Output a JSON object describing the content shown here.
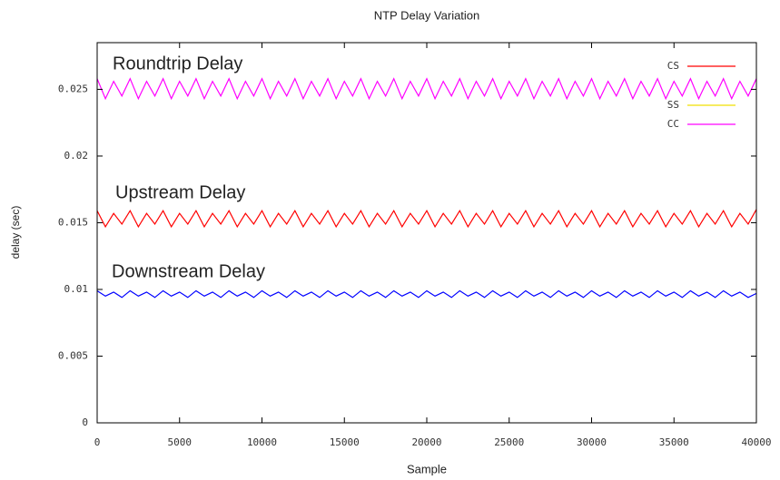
{
  "chart_data": {
    "type": "line",
    "title": "NTP Delay Variation",
    "x_label": "Sample",
    "y_label": "delay (sec)",
    "xlim": [
      0,
      40000
    ],
    "xticks": [
      0,
      5000,
      10000,
      15000,
      20000,
      25000,
      30000,
      35000,
      40000
    ],
    "ylim": [
      0,
      0.0285
    ],
    "yticks": [
      0,
      0.005,
      0.01,
      0.015,
      0.02,
      0.025
    ],
    "grid": false,
    "legend": "top-right",
    "annotations": [
      "Roundtrip Delay",
      "Upstream Delay",
      "Downstream Delay"
    ],
    "x": [
      0,
      500,
      1000,
      1500,
      2000,
      2500,
      3000,
      3500,
      4000,
      4500,
      5000,
      5500,
      6000,
      6500,
      7000,
      7500,
      8000,
      8500,
      9000,
      9500,
      10000,
      10500,
      11000,
      11500,
      12000,
      12500,
      13000,
      13500,
      14000,
      14500,
      15000,
      15500,
      16000,
      16500,
      17000,
      17500,
      18000,
      18500,
      19000,
      19500,
      20000,
      20500,
      21000,
      21500,
      22000,
      22500,
      23000,
      23500,
      24000,
      24500,
      25000,
      25500,
      26000,
      26500,
      27000,
      27500,
      28000,
      28500,
      29000,
      29500,
      30000,
      30500,
      31000,
      31500,
      32000,
      32500,
      33000,
      33500,
      34000,
      34500,
      35000,
      35500,
      36000,
      36500,
      37000,
      37500,
      38000,
      38500,
      39000,
      39500,
      40000
    ],
    "series": [
      {
        "name": "CS",
        "color": "#ff0000",
        "legend_color": "#ff0000",
        "values": [
          0.0159,
          0.0147,
          0.0157,
          0.0149,
          0.0159,
          0.0147,
          0.0157,
          0.0149,
          0.0159,
          0.0147,
          0.0157,
          0.0149,
          0.0159,
          0.0147,
          0.0157,
          0.0149,
          0.0159,
          0.0147,
          0.0157,
          0.0149,
          0.0159,
          0.0147,
          0.0157,
          0.0149,
          0.0159,
          0.0147,
          0.0157,
          0.0149,
          0.0159,
          0.0147,
          0.0157,
          0.0149,
          0.0159,
          0.0147,
          0.0157,
          0.0149,
          0.0159,
          0.0147,
          0.0157,
          0.0149,
          0.0159,
          0.0147,
          0.0157,
          0.0149,
          0.0159,
          0.0147,
          0.0157,
          0.0149,
          0.0159,
          0.0147,
          0.0157,
          0.0149,
          0.0159,
          0.0147,
          0.0157,
          0.0149,
          0.0159,
          0.0147,
          0.0157,
          0.0149,
          0.0159,
          0.0147,
          0.0157,
          0.0149,
          0.0159,
          0.0147,
          0.0157,
          0.0149,
          0.0159,
          0.0147,
          0.0157,
          0.0149,
          0.0159,
          0.0147,
          0.0157,
          0.0149,
          0.0159,
          0.0147,
          0.0157,
          0.0149,
          0.016
        ]
      },
      {
        "name": "SS",
        "color": "#0000ff",
        "legend_color": "#f0e000",
        "values": [
          0.0099,
          0.0095,
          0.0098,
          0.0094,
          0.0099,
          0.0095,
          0.0098,
          0.0094,
          0.0099,
          0.0095,
          0.0098,
          0.0094,
          0.0099,
          0.0095,
          0.0098,
          0.0094,
          0.0099,
          0.0095,
          0.0098,
          0.0094,
          0.0099,
          0.0095,
          0.0098,
          0.0094,
          0.0099,
          0.0095,
          0.0098,
          0.0094,
          0.0099,
          0.0095,
          0.0098,
          0.0094,
          0.0099,
          0.0095,
          0.0098,
          0.0094,
          0.0099,
          0.0095,
          0.0098,
          0.0094,
          0.0099,
          0.0095,
          0.0098,
          0.0094,
          0.0099,
          0.0095,
          0.0098,
          0.0094,
          0.0099,
          0.0095,
          0.0098,
          0.0094,
          0.0099,
          0.0095,
          0.0098,
          0.0094,
          0.0099,
          0.0095,
          0.0098,
          0.0094,
          0.0099,
          0.0095,
          0.0098,
          0.0094,
          0.0099,
          0.0095,
          0.0098,
          0.0094,
          0.0099,
          0.0095,
          0.0098,
          0.0094,
          0.0099,
          0.0095,
          0.0098,
          0.0094,
          0.0099,
          0.0095,
          0.0098,
          0.0094,
          0.0097
        ]
      },
      {
        "name": "CC",
        "color": "#ff00ff",
        "legend_color": "#ff00ff",
        "values": [
          0.0258,
          0.0243,
          0.0256,
          0.0245,
          0.0258,
          0.0243,
          0.0256,
          0.0245,
          0.0258,
          0.0243,
          0.0256,
          0.0245,
          0.0258,
          0.0243,
          0.0256,
          0.0245,
          0.0258,
          0.0243,
          0.0256,
          0.0245,
          0.0258,
          0.0243,
          0.0256,
          0.0245,
          0.0258,
          0.0243,
          0.0256,
          0.0245,
          0.0258,
          0.0243,
          0.0256,
          0.0245,
          0.0258,
          0.0243,
          0.0256,
          0.0245,
          0.0258,
          0.0243,
          0.0256,
          0.0245,
          0.0258,
          0.0243,
          0.0256,
          0.0245,
          0.0258,
          0.0243,
          0.0256,
          0.0245,
          0.0258,
          0.0243,
          0.0256,
          0.0245,
          0.0258,
          0.0243,
          0.0256,
          0.0245,
          0.0258,
          0.0243,
          0.0256,
          0.0245,
          0.0258,
          0.0243,
          0.0256,
          0.0245,
          0.0258,
          0.0243,
          0.0256,
          0.0245,
          0.0258,
          0.0243,
          0.0256,
          0.0245,
          0.0258,
          0.0243,
          0.0256,
          0.0245,
          0.0258,
          0.0243,
          0.0256,
          0.0245,
          0.0258
        ]
      }
    ]
  }
}
